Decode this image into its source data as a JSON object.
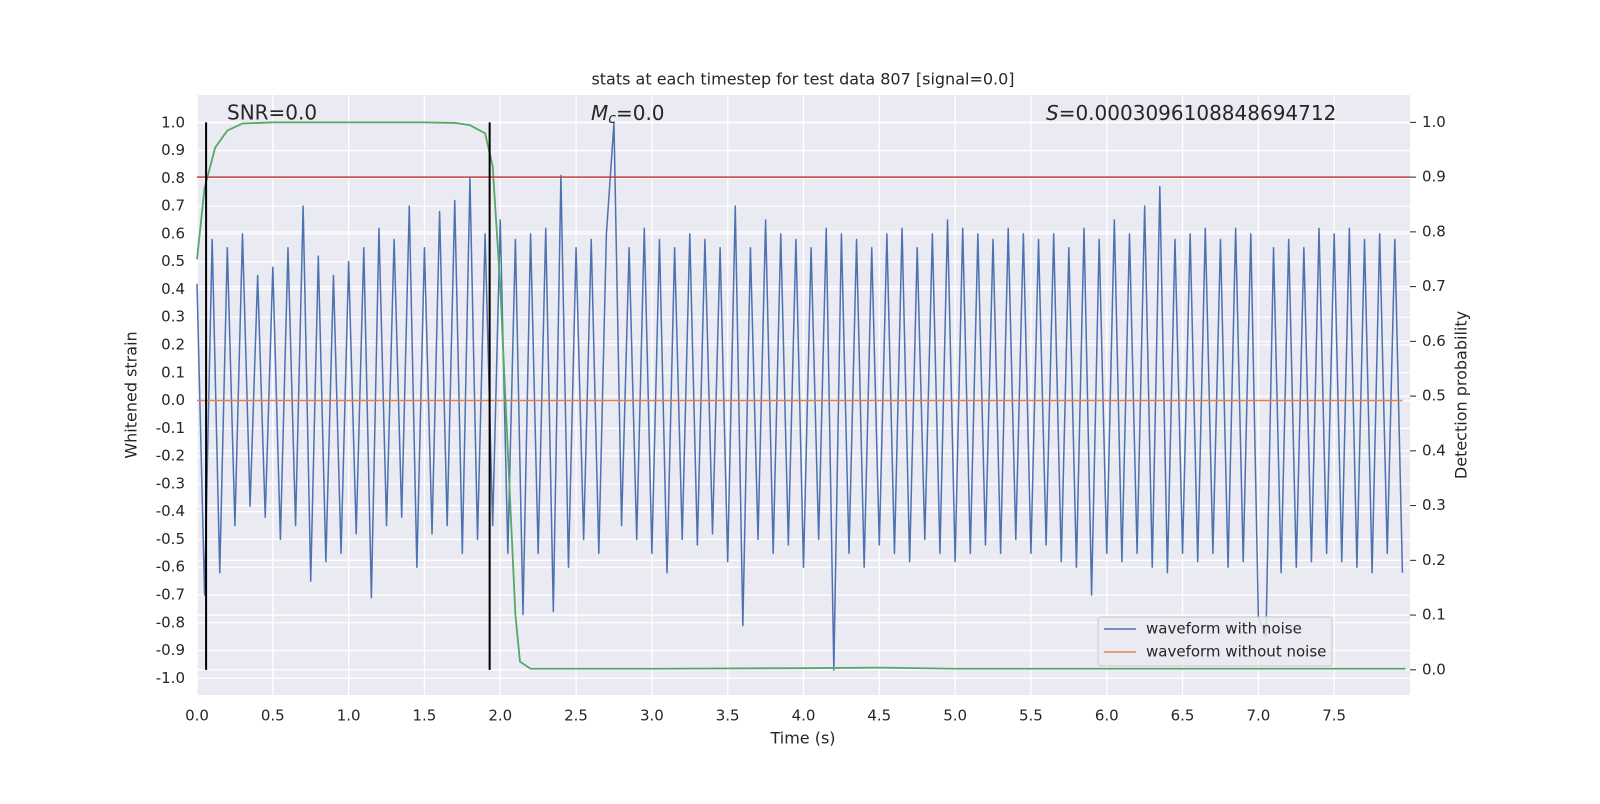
{
  "chart_data": {
    "type": "line",
    "title": "stats at each timestep for test data 807 [signal=0.0]",
    "xlabel": "Time (s)",
    "ylabel": "Whitened strain",
    "y2label": "Detection probability",
    "annotations": [
      {
        "text": "SNR=0.0"
      },
      {
        "symbol": "M",
        "subscript": "c",
        "text": "=0.0"
      },
      {
        "symbol": "S",
        "text": "=0.0003096108848694712"
      }
    ],
    "xlim": [
      0,
      8.0
    ],
    "ylim": [
      -1.06,
      1.1
    ],
    "y2lim": [
      -0.046,
      1.05
    ],
    "xticks": [
      {
        "value": 0,
        "label": "0.0"
      },
      0.5,
      {
        "value": 1,
        "label": "1.0"
      },
      1.5,
      {
        "value": 2,
        "label": "2.0"
      },
      2.5,
      {
        "value": 3,
        "label": "3.0"
      },
      3.5,
      {
        "value": 4,
        "label": "4.0"
      },
      4.5,
      {
        "value": 5,
        "label": "5.0"
      },
      5.5,
      {
        "value": 6,
        "label": "6.0"
      },
      6.5,
      {
        "value": 7,
        "label": "7.0"
      },
      7.5
    ],
    "yticks": [
      {
        "value": -1,
        "label": "-1.0"
      },
      -0.9,
      -0.8,
      -0.7,
      -0.6,
      -0.5,
      -0.4,
      -0.3,
      -0.2,
      -0.1,
      {
        "value": 0,
        "label": "0.0"
      },
      0.1,
      0.2,
      0.3,
      0.4,
      0.5,
      0.6,
      0.7,
      0.8,
      0.9,
      {
        "value": 1,
        "label": "1.0"
      }
    ],
    "y2ticks": [
      {
        "value": 0,
        "label": "0.0"
      },
      0.1,
      0.2,
      0.3,
      0.4,
      0.5,
      0.6,
      0.7,
      0.8,
      0.9,
      {
        "value": 1,
        "label": "1.0"
      }
    ],
    "grid": true,
    "legend": "lower right",
    "series": [
      {
        "name": "waveform with noise",
        "color": "#4c72b0",
        "x": [
          0,
          0.05,
          0.1,
          0.15,
          0.2,
          0.25,
          0.3,
          0.35,
          0.4,
          0.45,
          0.5,
          0.55,
          0.6,
          0.65,
          0.7,
          0.75,
          0.8,
          0.85,
          0.9,
          0.95,
          1,
          1.05,
          1.1,
          1.15,
          1.2,
          1.25,
          1.3,
          1.35,
          1.4,
          1.45,
          1.5,
          1.55,
          1.6,
          1.65,
          1.7,
          1.75,
          1.8,
          1.85,
          1.9,
          1.95,
          2,
          2.05,
          2.1,
          2.15,
          2.2,
          2.25,
          2.3,
          2.35,
          2.4,
          2.45,
          2.5,
          2.55,
          2.6,
          2.65,
          2.7,
          2.75,
          2.8,
          2.85,
          2.9,
          2.95,
          3,
          3.05,
          3.1,
          3.15,
          3.2,
          3.25,
          3.3,
          3.35,
          3.4,
          3.45,
          3.5,
          3.55,
          3.6,
          3.65,
          3.7,
          3.75,
          3.8,
          3.85,
          3.9,
          3.95,
          4,
          4.05,
          4.1,
          4.15,
          4.2,
          4.25,
          4.3,
          4.35,
          4.4,
          4.45,
          4.5,
          4.55,
          4.6,
          4.65,
          4.7,
          4.75,
          4.8,
          4.85,
          4.9,
          4.95,
          5,
          5.05,
          5.1,
          5.15,
          5.2,
          5.25,
          5.3,
          5.35,
          5.4,
          5.45,
          5.5,
          5.55,
          5.6,
          5.65,
          5.7,
          5.75,
          5.8,
          5.85,
          5.9,
          5.95,
          6,
          6.05,
          6.1,
          6.15,
          6.2,
          6.25,
          6.3,
          6.35,
          6.4,
          6.45,
          6.5,
          6.55,
          6.6,
          6.65,
          6.7,
          6.75,
          6.8,
          6.85,
          6.9,
          6.95,
          7,
          7.05,
          7.1,
          7.15,
          7.2,
          7.25,
          7.3,
          7.35,
          7.4,
          7.45,
          7.5,
          7.55,
          7.6,
          7.65,
          7.7,
          7.75,
          7.8,
          7.85,
          7.9,
          7.95
        ],
        "values": [
          0.42,
          -0.7,
          0.58,
          -0.62,
          0.55,
          -0.45,
          0.6,
          -0.38,
          0.45,
          -0.42,
          0.48,
          -0.5,
          0.55,
          -0.45,
          0.7,
          -0.65,
          0.52,
          -0.58,
          0.45,
          -0.55,
          0.5,
          -0.48,
          0.55,
          -0.71,
          0.62,
          -0.45,
          0.58,
          -0.42,
          0.7,
          -0.6,
          0.55,
          -0.48,
          0.68,
          -0.45,
          0.72,
          -0.55,
          0.8,
          -0.5,
          0.6,
          -0.45,
          0.65,
          -0.55,
          0.58,
          -0.77,
          0.6,
          -0.55,
          0.62,
          -0.76,
          0.81,
          -0.6,
          0.55,
          -0.5,
          0.58,
          -0.55,
          0.6,
          1.0,
          -0.45,
          0.55,
          -0.5,
          0.62,
          -0.55,
          0.58,
          -0.62,
          0.55,
          -0.5,
          0.6,
          -0.52,
          0.58,
          -0.48,
          0.55,
          -0.58,
          0.7,
          -0.81,
          0.55,
          -0.5,
          0.65,
          -0.55,
          0.6,
          -0.52,
          0.58,
          -0.6,
          0.55,
          -0.5,
          0.62,
          -0.97,
          0.6,
          -0.55,
          0.58,
          -0.6,
          0.55,
          -0.52,
          0.6,
          -0.55,
          0.62,
          -0.58,
          0.55,
          -0.5,
          0.6,
          -0.55,
          0.65,
          -0.58,
          0.62,
          -0.55,
          0.6,
          -0.52,
          0.58,
          -0.55,
          0.62,
          -0.5,
          0.6,
          -0.55,
          0.58,
          -0.52,
          0.6,
          -0.58,
          0.55,
          -0.6,
          0.62,
          -0.7,
          0.58,
          -0.55,
          0.65,
          -0.58,
          0.6,
          -0.55,
          0.7,
          -0.6,
          0.77,
          -0.62,
          0.58,
          -0.55,
          0.6,
          -0.58,
          0.62,
          -0.55,
          0.58,
          -0.6,
          0.62,
          -0.58,
          0.6,
          -0.78,
          -0.85,
          0.55,
          -0.62,
          0.58,
          -0.6,
          0.55,
          -0.58,
          0.62,
          -0.55,
          0.6,
          -0.58,
          0.62,
          -0.6,
          0.58,
          -0.62,
          0.6,
          -0.55,
          0.58,
          -0.62
        ]
      },
      {
        "name": "waveform without noise",
        "color": "#dd8452",
        "x": [
          0,
          7.95
        ],
        "values": [
          0,
          0
        ]
      }
    ],
    "probability": {
      "color": "#55a868",
      "axis": "y2",
      "x": [
        0,
        0.05,
        0.12,
        0.2,
        0.3,
        0.5,
        1.0,
        1.5,
        1.7,
        1.8,
        1.9,
        1.95,
        2.0,
        2.05,
        2.1,
        2.13,
        2.2,
        3.0,
        4.0,
        4.5,
        5.0,
        6.0,
        7.0,
        7.97
      ],
      "values": [
        0.75,
        0.88,
        0.954,
        0.985,
        0.998,
        1.0,
        1.0,
        1.0,
        0.999,
        0.995,
        0.98,
        0.92,
        0.7,
        0.4,
        0.1,
        0.015,
        0.002,
        0.002,
        0.003,
        0.004,
        0.002,
        0.002,
        0.002,
        0.002
      ]
    },
    "threshold": {
      "value": 0.9,
      "axis": "y2",
      "color": "#c03d3e"
    },
    "markers": {
      "x": [
        0.06,
        1.93
      ],
      "color": "#000000"
    }
  }
}
